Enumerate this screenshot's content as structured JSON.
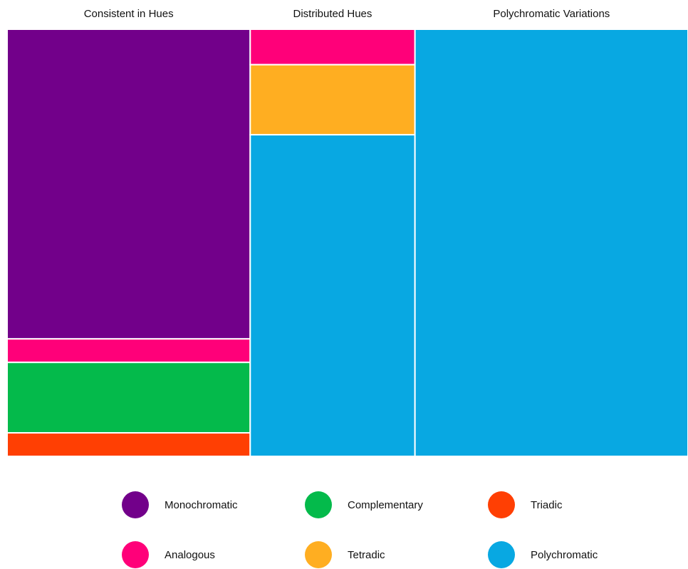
{
  "chart_data": {
    "type": "treemap",
    "columns": [
      {
        "title": "Consistent in Hues",
        "cells": [
          {
            "category": "Monochromatic",
            "value": 72.5
          },
          {
            "category": "Analogous",
            "value": 5.5
          },
          {
            "category": "Complementary",
            "value": 16.5
          },
          {
            "category": "Triadic",
            "value": 5.5
          }
        ]
      },
      {
        "title": "Distributed Hues",
        "cells": [
          {
            "category": "Analogous",
            "value": 8.3
          },
          {
            "category": "Tetradic",
            "value": 16.4
          },
          {
            "category": "Polychromatic",
            "value": 75.3
          }
        ]
      },
      {
        "title": "Polychromatic Variations",
        "cells": [
          {
            "category": "Polychromatic",
            "value": 100
          }
        ]
      }
    ],
    "column_shares": [
      0.357,
      0.242,
      0.401
    ],
    "legend": [
      {
        "label": "Monochromatic",
        "color": "#72008A"
      },
      {
        "label": "Complementary",
        "color": "#04BA4B"
      },
      {
        "label": "Triadic",
        "color": "#FF3F03"
      },
      {
        "label": "Analogous",
        "color": "#FF0079"
      },
      {
        "label": "Tetradic",
        "color": "#FFAE21"
      },
      {
        "label": "Polychromatic",
        "color": "#08A8E2"
      }
    ],
    "legend_placement": "bottom"
  }
}
